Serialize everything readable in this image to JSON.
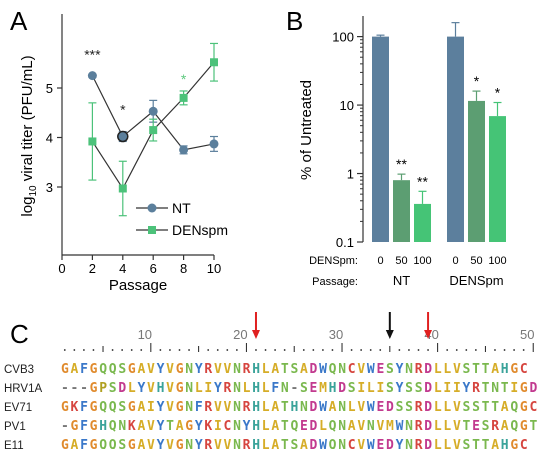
{
  "colors": {
    "nt": "#5b7f9c",
    "nt_dark": "#46667f",
    "densp": "#4cc27a",
    "densp_light": "#5fc97f",
    "bar_nt": "#5c7f9d",
    "bar_50": "#5c9e72",
    "bar_100": "#45c476",
    "axis": "#333333",
    "arrow_red": "#e02020",
    "arrow_black": "#111111"
  },
  "panels": {
    "a": "A",
    "b": "B",
    "c": "C"
  },
  "chart_data": [
    {
      "type": "line",
      "xlabel": "Passage",
      "ylabel_pre": "log",
      "ylabel_sub": "10",
      "ylabel_post": " viral titer (PFU/mL)",
      "xlim": [
        0,
        10
      ],
      "ylim": [
        3,
        5.5
      ],
      "xticks": [
        0,
        2,
        4,
        6,
        8,
        10
      ],
      "yticks": [
        3,
        4,
        5
      ],
      "series": [
        {
          "name": "NT",
          "x": [
            2,
            4,
            6,
            8,
            10
          ],
          "y": [
            5.25,
            4.02,
            4.53,
            3.75,
            3.87
          ],
          "err": [
            0.0,
            0.1,
            0.22,
            0.08,
            0.15
          ],
          "sig": [
            "***",
            "*",
            "",
            "",
            ""
          ]
        },
        {
          "name": "DENspm",
          "x": [
            2,
            4,
            6,
            8,
            10
          ],
          "y": [
            3.92,
            2.97,
            4.15,
            4.8,
            5.52
          ],
          "err": [
            0.78,
            0.55,
            0.22,
            0.14,
            0.38
          ],
          "sig": [
            "",
            "",
            "",
            "*",
            ""
          ]
        }
      ]
    },
    {
      "type": "bar",
      "ylabel": "% of Untreated",
      "yscale": "log",
      "ylim": [
        0.1,
        200
      ],
      "yticks": [
        "0.1",
        "1",
        "10",
        "100"
      ],
      "row1_label": "DENSpm:",
      "row2_label": "Passage:",
      "groups": [
        {
          "name": "NT",
          "bars": [
            {
              "dose": "0",
              "value": 100,
              "err": 5,
              "sig": ""
            },
            {
              "dose": "50",
              "value": 0.8,
              "err": 0.18,
              "sig": "**"
            },
            {
              "dose": "100",
              "value": 0.36,
              "err": 0.19,
              "sig": "**"
            }
          ]
        },
        {
          "name": "DENSpm",
          "bars": [
            {
              "dose": "0",
              "value": 100,
              "err": 60,
              "sig": ""
            },
            {
              "dose": "50",
              "value": 11.5,
              "err": 4.5,
              "sig": "*"
            },
            {
              "dose": "100",
              "value": 6.9,
              "err": 4,
              "sig": "*"
            }
          ]
        }
      ]
    }
  ],
  "alignment": {
    "ruler_numbers": [
      "10",
      "20",
      "30",
      "40",
      "50"
    ],
    "sequences": [
      {
        "name": "CVB3",
        "seq": "GAFGQQSGAVYVGNYRVVNRHLATSADWQNCVWESYNRDLLVSTTAHGC"
      },
      {
        "name": "HRV1A",
        "seq": "---GPSDLYVHVGNLIYRNLHLFN-SEMHDSILISYSSDLIIYRTNTIGD"
      },
      {
        "name": "EV71",
        "seq": "GKFGQQSGAIYVGNFRVVNRHLATHNDWANLVWEDSSRDLLVSSTTAQGC"
      },
      {
        "name": "PV1",
        "seq": "-GFGHQNKAVYTAGYKICNYHLATQEDLQNAVNVMWNRDLLVTESRAQGT"
      },
      {
        "name": "E11",
        "seq": "GAFGQQSGAVYVGNYRVVNRHLATSADWQNCVWEDYNRDLLVSTTAHGC"
      }
    ]
  }
}
